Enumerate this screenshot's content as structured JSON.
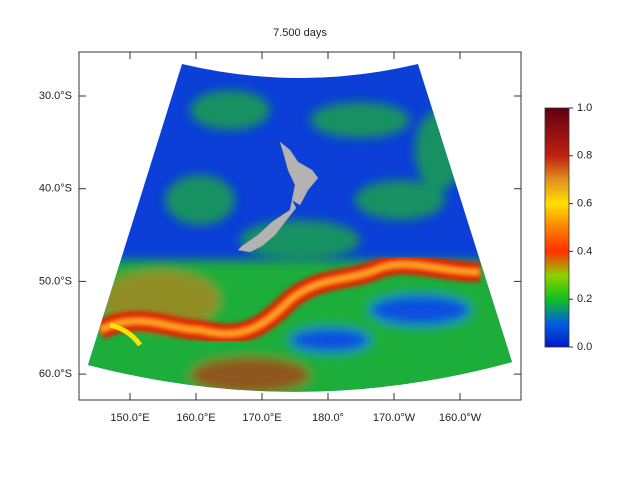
{
  "title": "7.500 days",
  "lat_ticks": [
    {
      "value": -30,
      "label": "30.0°S"
    },
    {
      "value": -40,
      "label": "40.0°S"
    },
    {
      "value": -50,
      "label": "50.0°S"
    },
    {
      "value": -60,
      "label": "60.0°S"
    }
  ],
  "lon_ticks": [
    {
      "value": 150,
      "label": "150.0°E"
    },
    {
      "value": 160,
      "label": "160.0°E"
    },
    {
      "value": 170,
      "label": "170.0°E"
    },
    {
      "value": 180,
      "label": "180.0°"
    },
    {
      "value": 190,
      "label": "170.0°W"
    },
    {
      "value": 200,
      "label": "160.0°W"
    }
  ],
  "colorbar": {
    "ticks": [
      {
        "value": 0,
        "label": "0.0"
      },
      {
        "value": 0.2,
        "label": "0.2"
      },
      {
        "value": 0.4,
        "label": "0.4"
      },
      {
        "value": 0.6,
        "label": "0.6"
      },
      {
        "value": 0.8,
        "label": "0.8"
      },
      {
        "value": 1,
        "label": "1.0"
      }
    ]
  }
}
